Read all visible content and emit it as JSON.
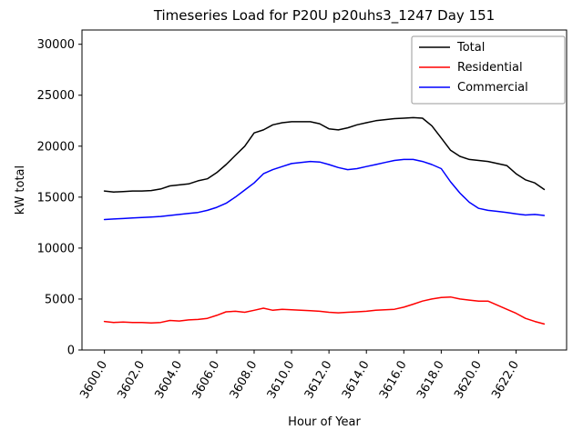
{
  "figure": {
    "background": "#ffffff"
  },
  "chart_data": {
    "type": "line",
    "title": "Timeseries Load for P20U p20uhs3_1247  Day 151",
    "xlabel": "Hour of Year",
    "ylabel": "kW total",
    "grid": false,
    "legend_position": "upper right",
    "xlim": [
      3598.8,
      3624.7
    ],
    "ylim": [
      0,
      31400
    ],
    "xticks": [
      3600,
      3602,
      3604,
      3606,
      3608,
      3610,
      3612,
      3614,
      3616,
      3618,
      3620,
      3622
    ],
    "xtick_labels": [
      "3600.0",
      "3602.0",
      "3604.0",
      "3606.0",
      "3608.0",
      "3610.0",
      "3612.0",
      "3614.0",
      "3616.0",
      "3618.0",
      "3620.0",
      "3622.0"
    ],
    "yticks": [
      0,
      5000,
      10000,
      15000,
      20000,
      25000,
      30000
    ],
    "ytick_labels": [
      "0",
      "5000",
      "10000",
      "15000",
      "20000",
      "25000",
      "30000"
    ],
    "x": [
      3600.0,
      3600.5,
      3601.0,
      3601.5,
      3602.0,
      3602.5,
      3603.0,
      3603.5,
      3604.0,
      3604.5,
      3605.0,
      3605.5,
      3606.0,
      3606.5,
      3607.0,
      3607.5,
      3608.0,
      3608.5,
      3609.0,
      3609.5,
      3610.0,
      3610.5,
      3611.0,
      3611.5,
      3612.0,
      3612.5,
      3613.0,
      3613.5,
      3614.0,
      3614.5,
      3615.0,
      3615.5,
      3616.0,
      3616.5,
      3617.0,
      3617.5,
      3618.0,
      3618.5,
      3619.0,
      3619.5,
      3620.0,
      3620.5,
      3621.0,
      3621.5,
      3622.0,
      3622.5,
      3623.0,
      3623.5
    ],
    "series": [
      {
        "name": "Total",
        "color": "#000000",
        "values": [
          15600,
          15500,
          15550,
          15600,
          15600,
          15650,
          15800,
          16100,
          16200,
          16300,
          16600,
          16800,
          17400,
          18200,
          19100,
          20000,
          21300,
          21600,
          22100,
          22300,
          22400,
          22400,
          22400,
          22200,
          21700,
          21600,
          21800,
          22100,
          22300,
          22500,
          22600,
          22700,
          22750,
          22800,
          22750,
          22000,
          20800,
          19600,
          19000,
          18700,
          18600,
          18500,
          18300,
          18100,
          17300,
          16700,
          16400,
          15750
        ]
      },
      {
        "name": "Residential",
        "color": "#ff0000",
        "values": [
          2800,
          2700,
          2750,
          2700,
          2700,
          2650,
          2700,
          2900,
          2850,
          2950,
          3000,
          3100,
          3400,
          3750,
          3800,
          3700,
          3900,
          4100,
          3900,
          4000,
          3950,
          3900,
          3850,
          3800,
          3700,
          3650,
          3700,
          3750,
          3800,
          3900,
          3950,
          4000,
          4200,
          4500,
          4800,
          5000,
          5150,
          5200,
          5000,
          4900,
          4800,
          4800,
          4400,
          4000,
          3600,
          3100,
          2800,
          2550
        ]
      },
      {
        "name": "Commercial",
        "color": "#0000ff",
        "values": [
          12800,
          12850,
          12900,
          12950,
          13000,
          13050,
          13100,
          13200,
          13300,
          13400,
          13500,
          13700,
          14000,
          14400,
          15000,
          15700,
          16400,
          17300,
          17700,
          18000,
          18300,
          18400,
          18500,
          18450,
          18200,
          17900,
          17700,
          17800,
          18000,
          18200,
          18400,
          18600,
          18700,
          18700,
          18500,
          18200,
          17800,
          16500,
          15400,
          14500,
          13900,
          13700,
          13600,
          13500,
          13350,
          13250,
          13300,
          13200
        ]
      }
    ]
  }
}
